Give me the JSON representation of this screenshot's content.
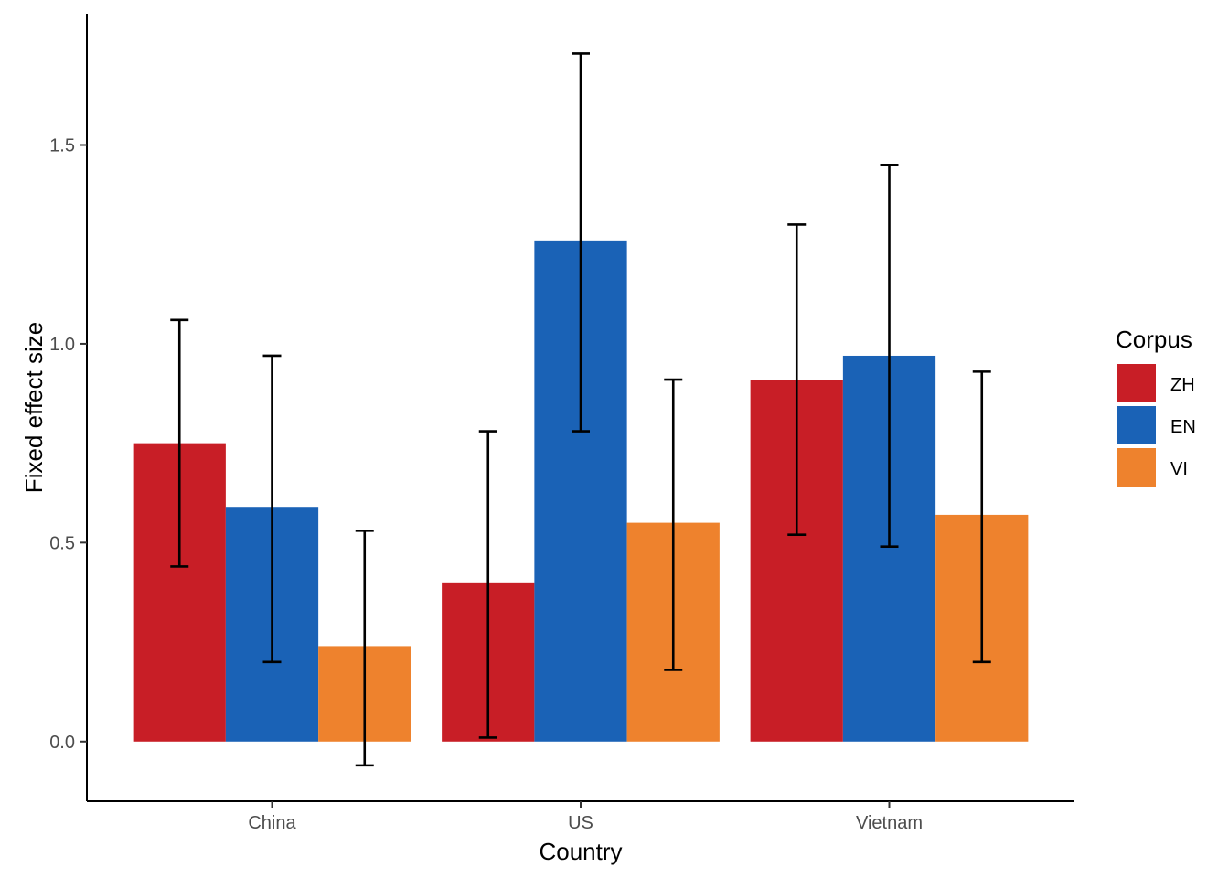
{
  "chart_data": {
    "type": "bar",
    "xlabel": "Country",
    "ylabel": "Fixed effect size",
    "categories": [
      "China",
      "US",
      "Vietnam"
    ],
    "ylim": [
      -0.15,
      1.83
    ],
    "yticks": [
      0.0,
      0.5,
      1.0,
      1.5
    ],
    "ytick_labels": [
      "0.0",
      "0.5",
      "1.0",
      "1.5"
    ],
    "grid": false,
    "legend": {
      "title": "Corpus",
      "position": "right"
    },
    "series": [
      {
        "name": "ZH",
        "color": "#c81e26",
        "values": [
          0.75,
          0.4,
          0.91
        ],
        "err_low": [
          0.44,
          0.01,
          0.52
        ],
        "err_high": [
          1.06,
          0.78,
          1.3
        ]
      },
      {
        "name": "EN",
        "color": "#1a62b6",
        "values": [
          0.59,
          1.26,
          0.97
        ],
        "err_low": [
          0.2,
          0.78,
          0.49
        ],
        "err_high": [
          0.97,
          1.73,
          1.45
        ]
      },
      {
        "name": "VI",
        "color": "#ee822d",
        "values": [
          0.24,
          0.55,
          0.57
        ],
        "err_low": [
          -0.06,
          0.18,
          0.2
        ],
        "err_high": [
          0.53,
          0.91,
          0.93
        ]
      }
    ]
  }
}
